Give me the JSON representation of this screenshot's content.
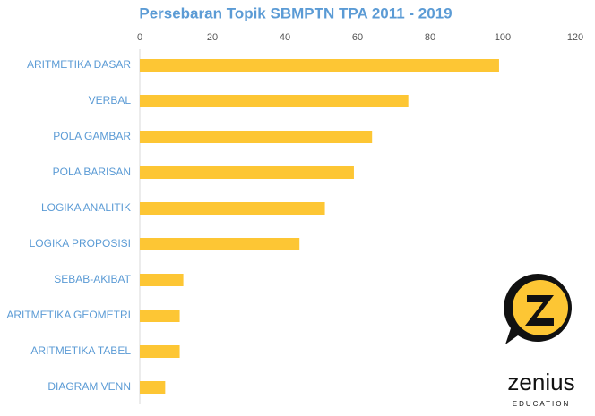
{
  "chart_data": {
    "type": "barh",
    "title": "Persebaran Topik SBMPTN TPA 2011 - 2019",
    "categories": [
      "ARITMETIKA DASAR",
      "VERBAL",
      "POLA GAMBAR",
      "POLA BARISAN",
      "LOGIKA ANALITIK",
      "LOGIKA PROPOSISI",
      "SEBAB-AKIBAT",
      "ARITMETIKA GEOMETRI",
      "ARITMETIKA TABEL",
      "DIAGRAM VENN"
    ],
    "values": [
      99,
      74,
      64,
      59,
      51,
      44,
      12,
      11,
      11,
      7
    ],
    "color": "#fdc634",
    "xlim": [
      0,
      120
    ],
    "xticks": [
      0,
      20,
      40,
      60,
      80,
      100,
      120
    ],
    "grid": false
  },
  "logo": {
    "name": "zenius",
    "tagline": "EDUCATION"
  }
}
